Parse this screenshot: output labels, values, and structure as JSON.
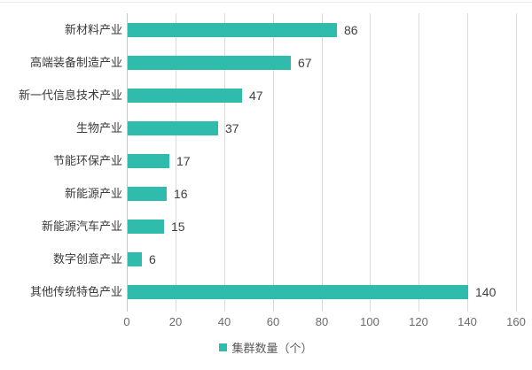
{
  "chart_data": {
    "type": "bar",
    "orientation": "horizontal",
    "title": "",
    "categories": [
      "新材料产业",
      "高端装备制造产业",
      "新一代信息技术产业",
      "生物产业",
      "节能环保产业",
      "新能源产业",
      "新能源汽车产业",
      "数字创意产业",
      "其他传统特色产业"
    ],
    "values": [
      86,
      67,
      47,
      37,
      17,
      16,
      15,
      6,
      140
    ],
    "xlabel": "",
    "ylabel": "",
    "xlim": [
      0,
      160
    ],
    "xticks": [
      0,
      20,
      40,
      60,
      80,
      100,
      120,
      140,
      160
    ],
    "grid": true,
    "data_labels": true,
    "legend": {
      "label": "集群数量（个）",
      "position": "bottom"
    }
  },
  "colors": {
    "bar": "#2fbcad",
    "gridline": "#dadada",
    "axis_line": "#c9c9c9",
    "category_text": "#3a3a3a",
    "value_text": "#404040",
    "tick_text": "#6b6b6b",
    "legend_text": "#595959",
    "background": "#ffffff"
  }
}
